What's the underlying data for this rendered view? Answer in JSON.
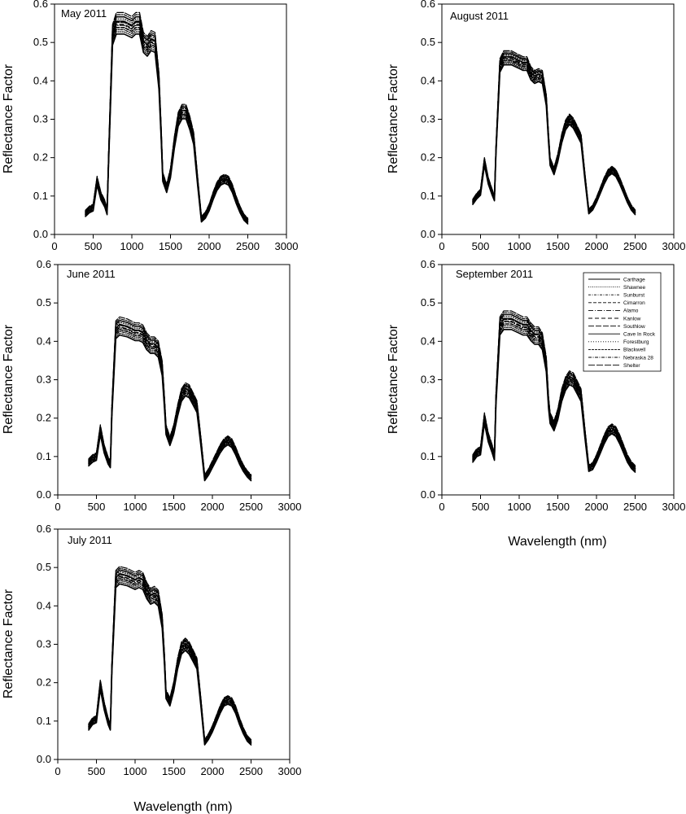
{
  "chart_data": [
    {
      "type": "line",
      "title": "May 2011",
      "xlabel": "",
      "ylabel": "Reflectance Factor",
      "xlim": [
        0,
        3000
      ],
      "ylim": [
        0,
        0.6
      ],
      "xticks": [
        "0",
        "500",
        "1000",
        "1500",
        "2000",
        "2500",
        "3000"
      ],
      "yticks": [
        "0.0",
        "0.1",
        "0.2",
        "0.3",
        "0.4",
        "0.5",
        "0.6"
      ],
      "x": [
        400,
        450,
        500,
        550,
        600,
        650,
        680,
        700,
        750,
        800,
        900,
        1000,
        1050,
        1100,
        1150,
        1200,
        1250,
        1300,
        1350,
        1380,
        1400,
        1450,
        1500,
        1550,
        1600,
        1650,
        1700,
        1750,
        1800,
        1850,
        1900,
        1950,
        2000,
        2050,
        2100,
        2150,
        2200,
        2250,
        2300,
        2350,
        2400,
        2450,
        2500
      ],
      "mean": [
        0.055,
        0.065,
        0.07,
        0.14,
        0.1,
        0.08,
        0.06,
        0.2,
        0.52,
        0.55,
        0.55,
        0.54,
        0.55,
        0.55,
        0.5,
        0.49,
        0.505,
        0.5,
        0.4,
        0.26,
        0.15,
        0.12,
        0.16,
        0.24,
        0.3,
        0.32,
        0.32,
        0.29,
        0.25,
        0.14,
        0.04,
        0.05,
        0.07,
        0.1,
        0.125,
        0.14,
        0.145,
        0.14,
        0.12,
        0.09,
        0.065,
        0.045,
        0.035
      ],
      "spread": 0.02
    },
    {
      "type": "line",
      "title": "August 2011",
      "xlabel": "",
      "ylabel": "Reflectance Factor",
      "xlim": [
        0,
        3000
      ],
      "ylim": [
        0,
        0.6
      ],
      "xticks": [
        "0",
        "500",
        "1000",
        "1500",
        "2000",
        "2500",
        "3000"
      ],
      "yticks": [
        "0.0",
        "0.1",
        "0.2",
        "0.3",
        "0.4",
        "0.5",
        "0.6"
      ],
      "x": [
        400,
        450,
        500,
        550,
        600,
        650,
        680,
        700,
        750,
        800,
        900,
        1000,
        1050,
        1100,
        1150,
        1200,
        1250,
        1300,
        1350,
        1380,
        1400,
        1450,
        1500,
        1550,
        1600,
        1650,
        1700,
        1750,
        1800,
        1850,
        1900,
        1950,
        2000,
        2050,
        2100,
        2150,
        2200,
        2250,
        2300,
        2350,
        2400,
        2450,
        2500
      ],
      "mean": [
        0.085,
        0.1,
        0.11,
        0.19,
        0.14,
        0.11,
        0.095,
        0.22,
        0.44,
        0.46,
        0.46,
        0.45,
        0.445,
        0.445,
        0.42,
        0.41,
        0.415,
        0.41,
        0.35,
        0.25,
        0.19,
        0.165,
        0.2,
        0.25,
        0.285,
        0.3,
        0.29,
        0.27,
        0.25,
        0.15,
        0.06,
        0.07,
        0.09,
        0.115,
        0.14,
        0.16,
        0.168,
        0.16,
        0.14,
        0.115,
        0.09,
        0.07,
        0.058
      ],
      "spread": 0.015
    },
    {
      "type": "line",
      "title": "June 2011",
      "xlabel": "",
      "ylabel": "Reflectance Factor",
      "xlim": [
        0,
        3000
      ],
      "ylim": [
        0,
        0.6
      ],
      "xticks": [
        "0",
        "500",
        "1000",
        "1500",
        "2000",
        "2500",
        "3000"
      ],
      "yticks": [
        "0.0",
        "0.1",
        "0.2",
        "0.3",
        "0.4",
        "0.5",
        "0.6"
      ],
      "x": [
        400,
        450,
        500,
        550,
        600,
        650,
        680,
        700,
        750,
        800,
        900,
        1000,
        1050,
        1100,
        1150,
        1200,
        1250,
        1300,
        1350,
        1380,
        1400,
        1450,
        1500,
        1550,
        1600,
        1650,
        1700,
        1750,
        1800,
        1850,
        1900,
        1950,
        2000,
        2050,
        2100,
        2150,
        2200,
        2250,
        2300,
        2350,
        2400,
        2450,
        2500
      ],
      "mean": [
        0.085,
        0.095,
        0.1,
        0.17,
        0.12,
        0.09,
        0.08,
        0.22,
        0.43,
        0.44,
        0.435,
        0.425,
        0.425,
        0.42,
        0.4,
        0.39,
        0.39,
        0.38,
        0.33,
        0.24,
        0.17,
        0.14,
        0.17,
        0.22,
        0.26,
        0.275,
        0.27,
        0.25,
        0.23,
        0.14,
        0.045,
        0.06,
        0.08,
        0.1,
        0.12,
        0.135,
        0.142,
        0.135,
        0.115,
        0.09,
        0.07,
        0.055,
        0.045
      ],
      "spread": 0.02
    },
    {
      "type": "line",
      "title": "September 2011",
      "xlabel": "Wavelength (nm)",
      "ylabel": "Reflectance Factor",
      "xlim": [
        0,
        3000
      ],
      "ylim": [
        0,
        0.6
      ],
      "xticks": [
        "0",
        "500",
        "1000",
        "1500",
        "2000",
        "2500",
        "3000"
      ],
      "yticks": [
        "0.0",
        "0.1",
        "0.2",
        "0.3",
        "0.4",
        "0.5",
        "0.6"
      ],
      "x": [
        400,
        450,
        500,
        550,
        600,
        650,
        680,
        700,
        750,
        800,
        900,
        1000,
        1050,
        1100,
        1150,
        1200,
        1250,
        1300,
        1350,
        1380,
        1400,
        1450,
        1500,
        1550,
        1600,
        1650,
        1700,
        1750,
        1800,
        1850,
        1900,
        1950,
        2000,
        2050,
        2100,
        2150,
        2200,
        2250,
        2300,
        2350,
        2400,
        2450,
        2500
      ],
      "mean": [
        0.095,
        0.11,
        0.115,
        0.2,
        0.15,
        0.12,
        0.1,
        0.25,
        0.44,
        0.455,
        0.455,
        0.445,
        0.44,
        0.44,
        0.425,
        0.415,
        0.415,
        0.4,
        0.34,
        0.24,
        0.2,
        0.18,
        0.21,
        0.26,
        0.29,
        0.305,
        0.3,
        0.28,
        0.26,
        0.16,
        0.07,
        0.075,
        0.095,
        0.12,
        0.145,
        0.165,
        0.172,
        0.165,
        0.145,
        0.12,
        0.095,
        0.078,
        0.068
      ],
      "spread": 0.02,
      "legend": {
        "placement": "top-right",
        "entries": [
          {
            "label": "Carthage",
            "dash": ""
          },
          {
            "label": "Shawnee",
            "dash": "1,1.5"
          },
          {
            "label": "Sunburst",
            "dash": "3,1.5,1,1.5"
          },
          {
            "label": "Cimarron",
            "dash": "4,2"
          },
          {
            "label": "Alamo",
            "dash": "6,2,1,2"
          },
          {
            "label": "Kanlow",
            "dash": "5,3"
          },
          {
            "label": "Southlow",
            "dash": "7,2"
          },
          {
            "label": "Cave In Rock",
            "dash": ""
          },
          {
            "label": "Forestburg",
            "dash": "1,2"
          },
          {
            "label": "Blackwell",
            "dash": "3,1"
          },
          {
            "label": "Nebraska 28",
            "dash": "4,1.5,1,1.5"
          },
          {
            "label": "Shelter",
            "dash": "8,2"
          }
        ]
      }
    },
    {
      "type": "line",
      "title": "July 2011",
      "xlabel": "Wavelength (nm)",
      "ylabel": "Reflectance Factor",
      "xlim": [
        0,
        3000
      ],
      "ylim": [
        0,
        0.6
      ],
      "xticks": [
        "0",
        "500",
        "1000",
        "1500",
        "2000",
        "2500",
        "3000"
      ],
      "yticks": [
        "0.0",
        "0.1",
        "0.2",
        "0.3",
        "0.4",
        "0.5",
        "0.6"
      ],
      "x": [
        400,
        450,
        500,
        550,
        600,
        650,
        680,
        700,
        750,
        800,
        900,
        1000,
        1050,
        1100,
        1150,
        1200,
        1250,
        1300,
        1350,
        1380,
        1400,
        1450,
        1500,
        1550,
        1600,
        1650,
        1700,
        1750,
        1800,
        1850,
        1900,
        1950,
        2000,
        2050,
        2100,
        2150,
        2200,
        2250,
        2300,
        2350,
        2400,
        2450,
        2500
      ],
      "mean": [
        0.085,
        0.1,
        0.105,
        0.195,
        0.14,
        0.1,
        0.085,
        0.24,
        0.47,
        0.48,
        0.475,
        0.465,
        0.47,
        0.465,
        0.44,
        0.425,
        0.43,
        0.42,
        0.36,
        0.26,
        0.17,
        0.15,
        0.19,
        0.25,
        0.29,
        0.3,
        0.29,
        0.27,
        0.25,
        0.15,
        0.045,
        0.06,
        0.08,
        0.105,
        0.13,
        0.15,
        0.155,
        0.15,
        0.13,
        0.1,
        0.075,
        0.055,
        0.045
      ],
      "spread": 0.018
    }
  ]
}
